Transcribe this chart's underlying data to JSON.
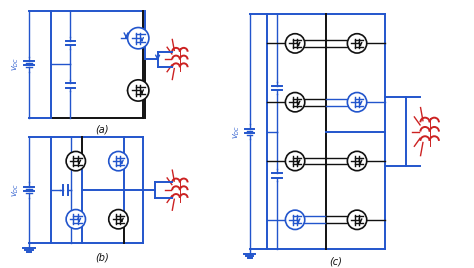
{
  "blue": "#2255cc",
  "black": "#111111",
  "red": "#cc2222",
  "label_a": "(a)",
  "label_b": "(b)",
  "label_c": "(c)",
  "vdc_label": "$V_{DC}$",
  "figsize": [
    4.74,
    2.68
  ],
  "dpi": 100
}
